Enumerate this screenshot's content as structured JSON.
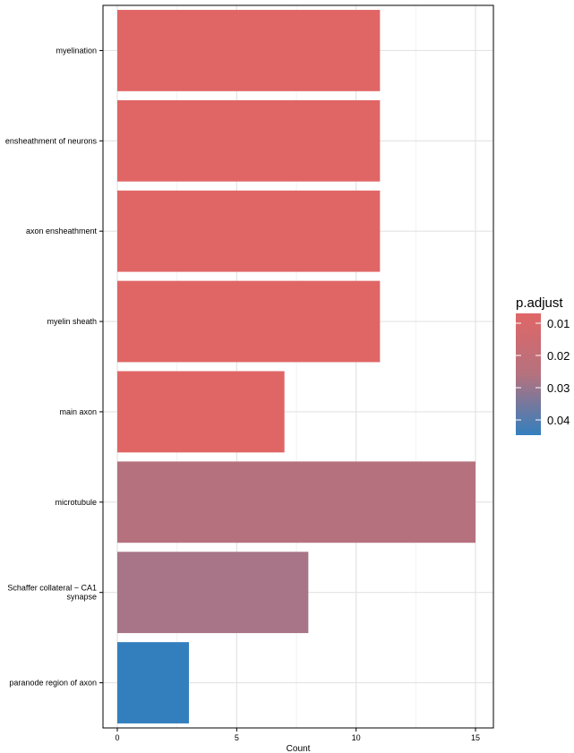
{
  "chart_data": {
    "type": "bar",
    "orientation": "horizontal",
    "categories": [
      "myelination",
      "ensheathment of neurons",
      "axon ensheathment",
      "myelin sheath",
      "main axon",
      "microtubule",
      "Schaffer collateral - CA1 synapse",
      "paranode region of axon"
    ],
    "category_lines": [
      [
        "myelination"
      ],
      [
        "ensheathment of neurons"
      ],
      [
        "axon ensheathment"
      ],
      [
        "myelin sheath"
      ],
      [
        "main axon"
      ],
      [
        "microtubule"
      ],
      [
        "Schaffer collateral − CA1",
        "synapse"
      ],
      [
        "paranode region of axon"
      ]
    ],
    "values": [
      11,
      11,
      11,
      11,
      7,
      15,
      8,
      3
    ],
    "bar_colors": [
      "#E06666",
      "#E06666",
      "#E06666",
      "#E06666",
      "#E06666",
      "#B5727E",
      "#A77587",
      "#337FBE"
    ],
    "xlabel": "Count",
    "ylabel": "",
    "xlim": [
      -0.6,
      15.75
    ],
    "x_ticks": [
      0,
      5,
      10,
      15
    ],
    "grid": true,
    "legend": {
      "title": "p.adjust",
      "placement": "right",
      "labels": [
        "0.01",
        "0.02",
        "0.03",
        "0.04"
      ],
      "color_high": "#E06666",
      "color_mid": "#B5727E",
      "color_low": "#337FBE"
    }
  }
}
